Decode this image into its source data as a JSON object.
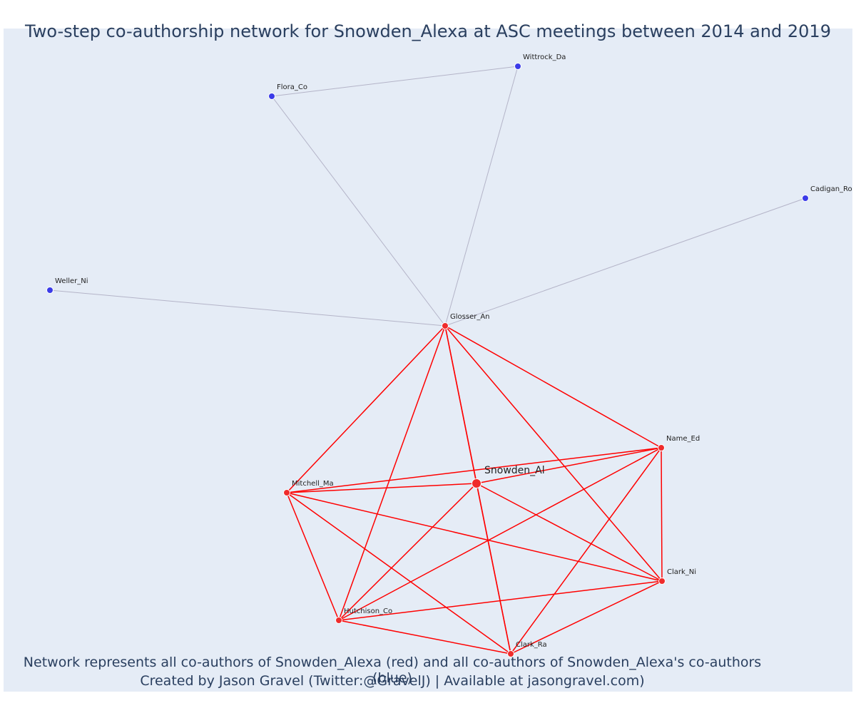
{
  "title": "Two-step co-authorship network for Snowden_Alexa at ASC meetings between 2014 and 2019",
  "caption": {
    "line1": "Network represents all co-authors of Snowden_Alexa (red) and all co-authors of Snowden_Alexa's co-authors (blue)",
    "line2": "Created by Jason Gravel (Twitter:@GravelJ) | Available at jasongravel.com)"
  },
  "colors": {
    "red_node": "#ef2b2b",
    "red_edge": "#ff0000",
    "blue_node": "#3b3be8",
    "blue_edge": "#b4b4c8",
    "background": "#e5ecf6",
    "text": "#2a3f5f"
  },
  "network": {
    "nodes": [
      {
        "id": "Snowden_Al",
        "group": "focal"
      },
      {
        "id": "Glosser_An",
        "group": "red"
      },
      {
        "id": "Name_Ed",
        "group": "red"
      },
      {
        "id": "Mitchell_Ma",
        "group": "red"
      },
      {
        "id": "Clark_Ni",
        "group": "red"
      },
      {
        "id": "Hutchison_Co",
        "group": "red"
      },
      {
        "id": "Clark_Ra",
        "group": "red"
      },
      {
        "id": "Wittrock_Da",
        "group": "blue"
      },
      {
        "id": "Flora_Co",
        "group": "blue"
      },
      {
        "id": "Cadigan_Ro",
        "group": "blue"
      },
      {
        "id": "Weller_Ni",
        "group": "blue"
      }
    ],
    "edges": [
      [
        "Snowden_Al",
        "Glosser_An"
      ],
      [
        "Snowden_Al",
        "Name_Ed"
      ],
      [
        "Snowden_Al",
        "Mitchell_Ma"
      ],
      [
        "Snowden_Al",
        "Clark_Ni"
      ],
      [
        "Snowden_Al",
        "Hutchison_Co"
      ],
      [
        "Snowden_Al",
        "Clark_Ra"
      ],
      [
        "Glosser_An",
        "Name_Ed"
      ],
      [
        "Glosser_An",
        "Mitchell_Ma"
      ],
      [
        "Glosser_An",
        "Clark_Ni"
      ],
      [
        "Glosser_An",
        "Hutchison_Co"
      ],
      [
        "Glosser_An",
        "Clark_Ra"
      ],
      [
        "Name_Ed",
        "Mitchell_Ma"
      ],
      [
        "Name_Ed",
        "Clark_Ni"
      ],
      [
        "Name_Ed",
        "Hutchison_Co"
      ],
      [
        "Name_Ed",
        "Clark_Ra"
      ],
      [
        "Mitchell_Ma",
        "Clark_Ni"
      ],
      [
        "Mitchell_Ma",
        "Hutchison_Co"
      ],
      [
        "Mitchell_Ma",
        "Clark_Ra"
      ],
      [
        "Clark_Ni",
        "Hutchison_Co"
      ],
      [
        "Clark_Ni",
        "Clark_Ra"
      ],
      [
        "Hutchison_Co",
        "Clark_Ra"
      ],
      [
        "Glosser_An",
        "Flora_Co"
      ],
      [
        "Glosser_An",
        "Wittrock_Da"
      ],
      [
        "Flora_Co",
        "Wittrock_Da"
      ],
      [
        "Glosser_An",
        "Cadigan_Ro"
      ],
      [
        "Glosser_An",
        "Weller_Ni"
      ]
    ]
  }
}
